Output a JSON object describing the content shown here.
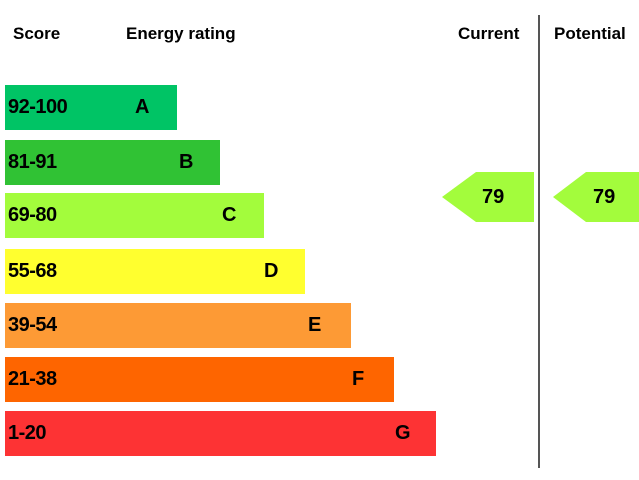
{
  "header": {
    "score": "Score",
    "energy_rating": "Energy rating",
    "current": "Current",
    "potential": "Potential"
  },
  "chart_data": {
    "type": "bar",
    "title": "Energy rating",
    "bands": [
      {
        "range": "92-100",
        "letter": "A",
        "color": "#00c465"
      },
      {
        "range": "81-91",
        "letter": "B",
        "color": "#30c234"
      },
      {
        "range": "69-80",
        "letter": "C",
        "color": "#a3fc3c"
      },
      {
        "range": "55-68",
        "letter": "D",
        "color": "#ffff2f"
      },
      {
        "range": "39-54",
        "letter": "E",
        "color": "#fd9a35"
      },
      {
        "range": "21-38",
        "letter": "F",
        "color": "#fe6500"
      },
      {
        "range": "1-20",
        "letter": "G",
        "color": "#fd3334"
      }
    ],
    "current": {
      "value": "79",
      "band": "C",
      "color": "#a3fc3c"
    },
    "potential": {
      "value": "79",
      "band": "C",
      "color": "#a3fc3c"
    }
  }
}
